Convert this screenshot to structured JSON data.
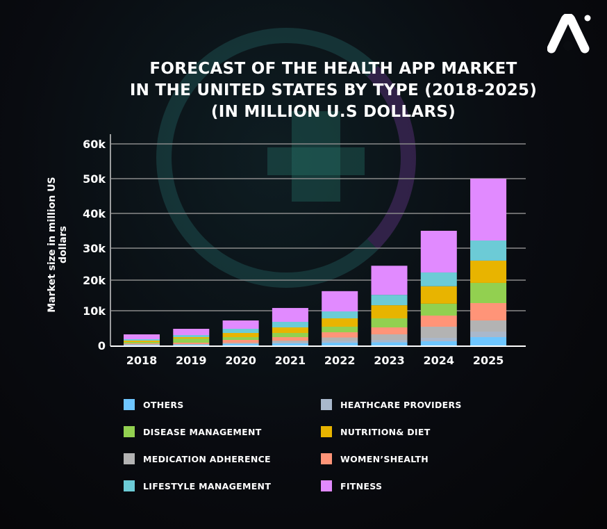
{
  "title_lines": [
    "FORECAST OF THE HEALTH APP MARKET",
    "IN THE UNITED STATES BY TYPE (2018-2025)",
    "(IN MILLION U.S DOLLARS)"
  ],
  "logo_icon": "brand-a-logo-icon",
  "chart_data": {
    "type": "bar",
    "stacked": true,
    "title": "FORECAST OF THE HEALTH APP MARKET IN THE UNITED STATES BY TYPE (2018-2025) (IN MILLION U.S DOLLARS)",
    "xlabel": "",
    "ylabel": "Market size in million US dollars",
    "ylim": [
      0,
      60000
    ],
    "yticks": [
      0,
      10000,
      20000,
      30000,
      40000,
      50000,
      60000
    ],
    "ytick_labels": [
      "0",
      "10k",
      "20k",
      "30k",
      "40k",
      "50k",
      "60k"
    ],
    "grid": true,
    "legend_placement": "bottom",
    "categories": [
      "2018",
      "2019",
      "2020",
      "2021",
      "2022",
      "2023",
      "2024",
      "2025"
    ],
    "series": [
      {
        "name": "OTHERS",
        "color": "#6ec6ff",
        "values": [
          100,
          200,
          400,
          600,
          800,
          900,
          1200,
          2400
        ]
      },
      {
        "name": "HEATHCARE PROVIDERS",
        "color": "#a9b8cc",
        "values": [
          100,
          100,
          200,
          300,
          600,
          700,
          1000,
          1600
        ]
      },
      {
        "name": "MEDICATION ADHERENCE",
        "color": "#b3b3b3",
        "values": [
          200,
          100,
          200,
          500,
          900,
          1600,
          3200,
          3200
        ]
      },
      {
        "name": "WOMEN’SHEALTH",
        "color": "#ff9478",
        "values": [
          200,
          400,
          800,
          1000,
          1500,
          2000,
          3200,
          5300
        ]
      },
      {
        "name": "DISEASE MANAGEMENT",
        "color": "#92d050",
        "values": [
          400,
          1200,
          800,
          1200,
          1600,
          2600,
          3700,
          6600
        ]
      },
      {
        "name": "NUTRITION& DIET",
        "color": "#e8b400",
        "values": [
          400,
          400,
          1200,
          1600,
          2400,
          4000,
          5700,
          7000
        ]
      },
      {
        "name": "LIFESTYLE MANAGEMENT",
        "color": "#6ccbd6",
        "values": [
          400,
          600,
          1200,
          1600,
          2000,
          3400,
          4400,
          6100
        ]
      },
      {
        "name": "FITNESS",
        "color": "#e18aff",
        "values": [
          1400,
          1800,
          2400,
          4100,
          6600,
          9300,
          12600,
          17800
        ]
      }
    ]
  }
}
